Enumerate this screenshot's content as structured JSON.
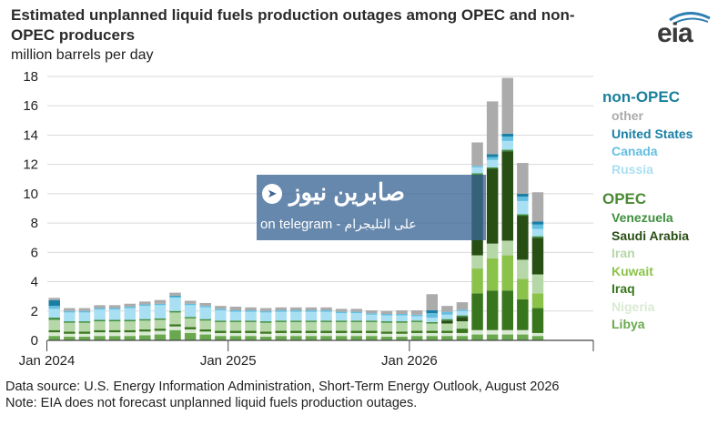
{
  "header": {
    "title": "Estimated unplanned liquid fuels production outages among OPEC and non-OPEC producers",
    "subtitle": "million barrels per day",
    "logo": "eia"
  },
  "footer": {
    "source": "Data source: U.S. Energy Information Administration, Short-Term Energy Outlook, August 2026",
    "note": "Note: EIA does not forecast unplanned liquid fuels production outages."
  },
  "watermark": {
    "arabic_name": "صابرين نيوز",
    "telegram_text": "on telegram - ",
    "telegram_arabic": "على التليجرام"
  },
  "legend": {
    "nonopec_title": "non-OPEC",
    "opec_title": "OPEC",
    "nonopec_colors": {
      "title": "#1a7f9c"
    },
    "opec_colors": {
      "title": "#4a8a34"
    }
  },
  "chart_data": {
    "type": "bar",
    "stacked": true,
    "x_ticks": [
      "Jan 2024",
      "Jan 2025",
      "Jan 2026"
    ],
    "ylim": [
      0,
      18
    ],
    "y_ticks": [
      0,
      2,
      4,
      6,
      8,
      10,
      12,
      14,
      16,
      18
    ],
    "grid": "horizontal",
    "legend_position": "right",
    "months": [
      "2024-01",
      "2024-02",
      "2024-03",
      "2024-04",
      "2024-05",
      "2024-06",
      "2024-07",
      "2024-08",
      "2024-09",
      "2024-10",
      "2024-11",
      "2024-12",
      "2025-01",
      "2025-02",
      "2025-03",
      "2025-04",
      "2025-05",
      "2025-06",
      "2025-07",
      "2025-08",
      "2025-09",
      "2025-10",
      "2025-11",
      "2025-12",
      "2026-01",
      "2026-02",
      "2026-03",
      "2026-04",
      "2026-05",
      "2026-06",
      "2026-07",
      "2026-08",
      "2026-09"
    ],
    "series": [
      {
        "name": "Libya",
        "group": "OPEC",
        "color": "#6aa84f",
        "values": [
          0.3,
          0.25,
          0.25,
          0.3,
          0.3,
          0.3,
          0.35,
          0.4,
          0.7,
          0.5,
          0.4,
          0.3,
          0.3,
          0.3,
          0.25,
          0.3,
          0.3,
          0.3,
          0.3,
          0.3,
          0.3,
          0.3,
          0.25,
          0.25,
          0.3,
          0.3,
          0.3,
          0.3,
          0.4,
          0.4,
          0.4,
          0.4,
          0.3
        ]
      },
      {
        "name": "Nigeria",
        "group": "OPEC",
        "color": "#d9ead3",
        "values": [
          0.25,
          0.2,
          0.2,
          0.25,
          0.25,
          0.25,
          0.25,
          0.25,
          0.25,
          0.25,
          0.2,
          0.2,
          0.2,
          0.2,
          0.2,
          0.2,
          0.2,
          0.2,
          0.2,
          0.2,
          0.2,
          0.2,
          0.2,
          0.2,
          0.2,
          0.2,
          0.2,
          0.2,
          0.3,
          0.3,
          0.3,
          0.3,
          0.2
        ]
      },
      {
        "name": "Iraq",
        "group": "OPEC",
        "color": "#38761d",
        "values": [
          0.15,
          0.15,
          0.15,
          0.15,
          0.15,
          0.15,
          0.15,
          0.15,
          0.15,
          0.15,
          0.15,
          0.15,
          0.15,
          0.15,
          0.15,
          0.15,
          0.15,
          0.15,
          0.15,
          0.15,
          0.15,
          0.15,
          0.15,
          0.15,
          0.15,
          0.15,
          0.15,
          0.3,
          2.5,
          2.7,
          2.7,
          2.1,
          1.7
        ]
      },
      {
        "name": "Kuwait",
        "group": "OPEC",
        "color": "#8bc34a",
        "values": [
          0,
          0,
          0,
          0,
          0,
          0,
          0,
          0,
          0,
          0,
          0,
          0,
          0,
          0,
          0,
          0,
          0,
          0,
          0,
          0,
          0,
          0,
          0,
          0,
          0,
          0,
          0,
          0,
          1.7,
          2.2,
          2.4,
          1.4,
          1.0
        ]
      },
      {
        "name": "Iran",
        "group": "OPEC",
        "color": "#b6d7a8",
        "values": [
          0.7,
          0.6,
          0.6,
          0.6,
          0.6,
          0.6,
          0.6,
          0.6,
          0.8,
          0.6,
          0.6,
          0.6,
          0.6,
          0.6,
          0.6,
          0.6,
          0.6,
          0.6,
          0.6,
          0.6,
          0.6,
          0.6,
          0.6,
          0.6,
          0.6,
          0.5,
          0.5,
          0.5,
          0.9,
          1.0,
          1.0,
          1.3,
          1.3
        ]
      },
      {
        "name": "Saudi Arabia",
        "group": "OPEC",
        "color": "#274e13",
        "values": [
          0,
          0,
          0,
          0,
          0,
          0,
          0,
          0,
          0,
          0,
          0,
          0,
          0,
          0,
          0,
          0,
          0,
          0,
          0,
          0,
          0,
          0,
          0,
          0,
          0,
          0,
          0.2,
          0.3,
          5.5,
          5.1,
          6.1,
          3.0,
          2.5
        ]
      },
      {
        "name": "Venezuela",
        "group": "OPEC",
        "color": "#3f8f3f",
        "values": [
          0.15,
          0.1,
          0.1,
          0.1,
          0.1,
          0.1,
          0.1,
          0.1,
          0.1,
          0.1,
          0.1,
          0.1,
          0.1,
          0.1,
          0.1,
          0.1,
          0.1,
          0.1,
          0.1,
          0.1,
          0.1,
          0.1,
          0.1,
          0.1,
          0.1,
          0.1,
          0.1,
          0.1,
          0.1,
          0.1,
          0.1,
          0.1,
          0.1
        ]
      },
      {
        "name": "Russia",
        "group": "non-OPEC",
        "color": "#a9dff2",
        "values": [
          0.6,
          0.6,
          0.6,
          0.7,
          0.7,
          0.8,
          0.9,
          0.9,
          0.9,
          0.8,
          0.8,
          0.7,
          0.6,
          0.6,
          0.6,
          0.6,
          0.6,
          0.6,
          0.6,
          0.5,
          0.5,
          0.4,
          0.4,
          0.4,
          0.3,
          0.3,
          0.3,
          0.3,
          0.4,
          0.5,
          0.6,
          0.9,
          0.5
        ]
      },
      {
        "name": "Canada",
        "group": "non-OPEC",
        "color": "#62bfe0",
        "values": [
          0.2,
          0.1,
          0.1,
          0.1,
          0.1,
          0.1,
          0.1,
          0.1,
          0.1,
          0.1,
          0.1,
          0.1,
          0.1,
          0.1,
          0.1,
          0.1,
          0.1,
          0.1,
          0.1,
          0.1,
          0.1,
          0.1,
          0.1,
          0.1,
          0.1,
          0.3,
          0.2,
          0.1,
          0.1,
          0.2,
          0.3,
          0.3,
          0.3
        ]
      },
      {
        "name": "United States",
        "group": "non-OPEC",
        "color": "#1a7fa5",
        "values": [
          0.4,
          0.0,
          0.0,
          0.0,
          0.0,
          0.0,
          0.0,
          0.0,
          0.05,
          0.0,
          0.0,
          0.0,
          0.0,
          0.0,
          0.0,
          0.0,
          0.0,
          0.0,
          0.0,
          0.0,
          0.0,
          0.0,
          0.0,
          0.0,
          0.0,
          0.2,
          0.0,
          0.0,
          0.0,
          0.2,
          0.2,
          0.2,
          0.2
        ]
      },
      {
        "name": "other",
        "group": "non-OPEC",
        "color": "#ababab",
        "values": [
          0.15,
          0.2,
          0.2,
          0.2,
          0.2,
          0.2,
          0.2,
          0.25,
          0.2,
          0.2,
          0.2,
          0.2,
          0.25,
          0.2,
          0.2,
          0.2,
          0.2,
          0.2,
          0.2,
          0.2,
          0.2,
          0.2,
          0.2,
          0.25,
          0.3,
          1.1,
          0.4,
          0.5,
          1.6,
          3.6,
          3.8,
          2.1,
          2.0
        ]
      }
    ]
  }
}
